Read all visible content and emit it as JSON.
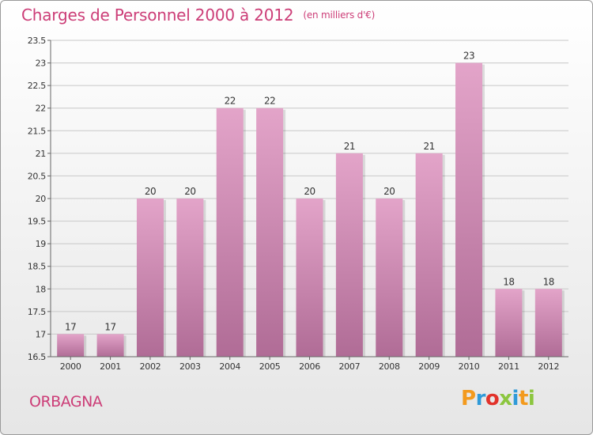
{
  "header": {
    "title": "Charges de Personnel 2000 à 2012",
    "unit": "(en milliers d'€)"
  },
  "footer": {
    "commune": "ORBAGNA",
    "logo_text": "Proxiti"
  },
  "colors": {
    "title": "#cc3d77",
    "bar_top": "#e3a4c9",
    "bar_bottom": "#b06c96",
    "grid": "#c8c8c8",
    "axis": "#666666"
  },
  "chart_data": {
    "type": "bar",
    "title": "Charges de Personnel 2000 à 2012",
    "categories": [
      "2000",
      "2001",
      "2002",
      "2003",
      "2004",
      "2005",
      "2006",
      "2007",
      "2008",
      "2009",
      "2010",
      "2011",
      "2012"
    ],
    "values": [
      17,
      17,
      20,
      20,
      22,
      22,
      20,
      21,
      20,
      21,
      23,
      18,
      18
    ],
    "ylim": [
      16.5,
      23.5
    ],
    "yticks": [
      "16.5",
      "17",
      "17.5",
      "18",
      "18.5",
      "19",
      "19.5",
      "20",
      "20.5",
      "21",
      "21.5",
      "22",
      "22.5",
      "23",
      "23.5"
    ],
    "grid": true
  }
}
